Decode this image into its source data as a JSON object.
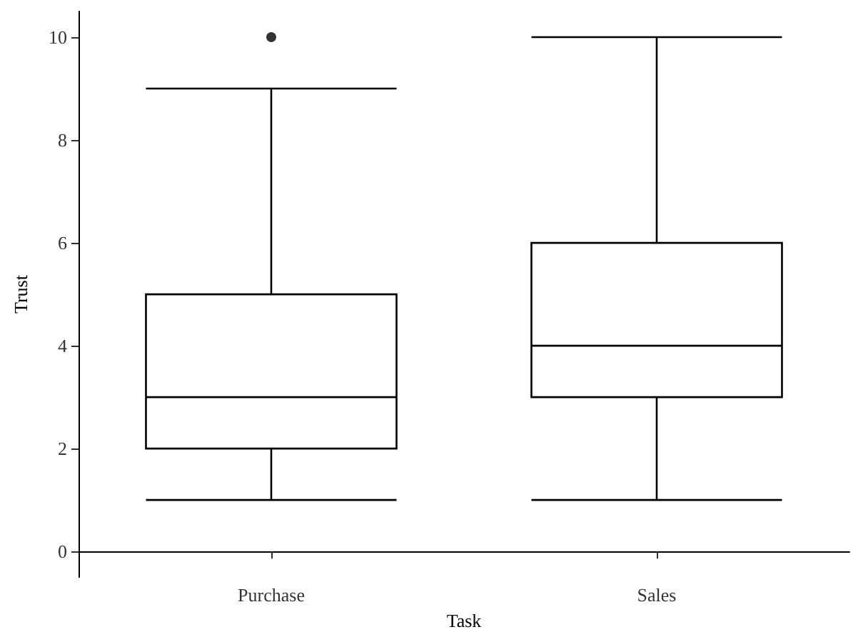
{
  "chart_data": {
    "type": "box",
    "xlabel": "Task",
    "ylabel": "Trust",
    "categories": [
      "Purchase",
      "Sales"
    ],
    "boxes": [
      {
        "low": 1,
        "q1": 2,
        "median": 3,
        "q3": 5,
        "high": 9,
        "outliers": [
          10
        ]
      },
      {
        "low": 1,
        "q1": 3,
        "median": 4,
        "q3": 6,
        "high": 10
      }
    ],
    "color": "#000000",
    "ylim": [
      -0.5,
      10.5
    ],
    "yticks": [
      0,
      2,
      4,
      6,
      8,
      10
    ],
    "grid": false
  }
}
